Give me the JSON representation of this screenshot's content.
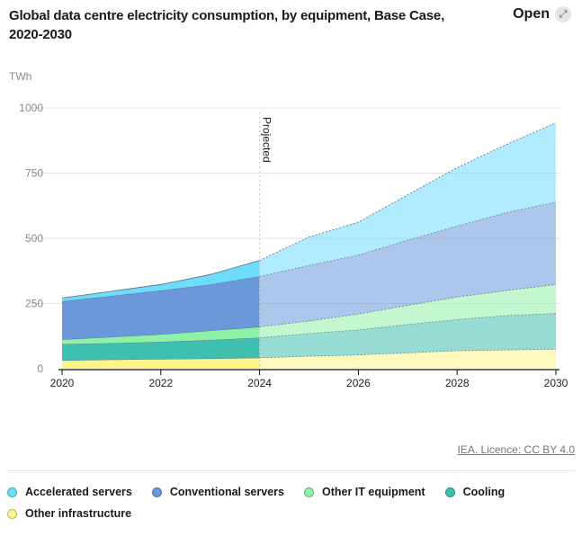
{
  "header": {
    "title": "Global data centre electricity consumption, by equipment, Base Case, 2020-2030",
    "open_label": "Open",
    "open_icon": "expand-icon"
  },
  "credit": "IEA. Licence: CC BY 4.0",
  "chart_data": {
    "type": "area",
    "stacked": true,
    "title": "Global data centre electricity consumption, by equipment, Base Case, 2020-2030",
    "ylabel": "TWh",
    "xlabel": "",
    "x": [
      2020,
      2021,
      2022,
      2023,
      2024,
      2025,
      2026,
      2027,
      2028,
      2029,
      2030
    ],
    "xticks": [
      "2020",
      "2022",
      "2024",
      "2026",
      "2028",
      "2030"
    ],
    "yticks": [
      "0",
      "250",
      "500",
      "750",
      "1000"
    ],
    "ylim": [
      0,
      1000
    ],
    "grid": true,
    "annotation": {
      "label": "Projected",
      "x": 2024
    },
    "legend_position": "bottom",
    "series": [
      {
        "name": "Other infrastructure",
        "color": "#fff48a",
        "values": [
          32,
          35,
          37,
          39,
          42,
          48,
          53,
          61,
          69,
          72,
          75
        ]
      },
      {
        "name": "Cooling",
        "color": "#3fbfb0",
        "values": [
          62,
          63,
          66,
          71,
          77,
          87,
          96,
          109,
          120,
          132,
          137
        ]
      },
      {
        "name": "Other IT equipment",
        "color": "#8ff0a8",
        "values": [
          18,
          24,
          29,
          36,
          42,
          48,
          61,
          73,
          86,
          96,
          111
        ]
      },
      {
        "name": "Conventional servers",
        "color": "#6a98da",
        "values": [
          146,
          157,
          168,
          177,
          193,
          213,
          226,
          250,
          272,
          299,
          316
        ]
      },
      {
        "name": "Accelerated servers",
        "color": "#6fdcfc",
        "values": [
          13,
          18,
          23,
          38,
          61,
          109,
          126,
          174,
          224,
          261,
          304
        ]
      }
    ],
    "legend_order": [
      "Accelerated servers",
      "Conventional servers",
      "Other IT equipment",
      "Cooling",
      "Other infrastructure"
    ]
  }
}
